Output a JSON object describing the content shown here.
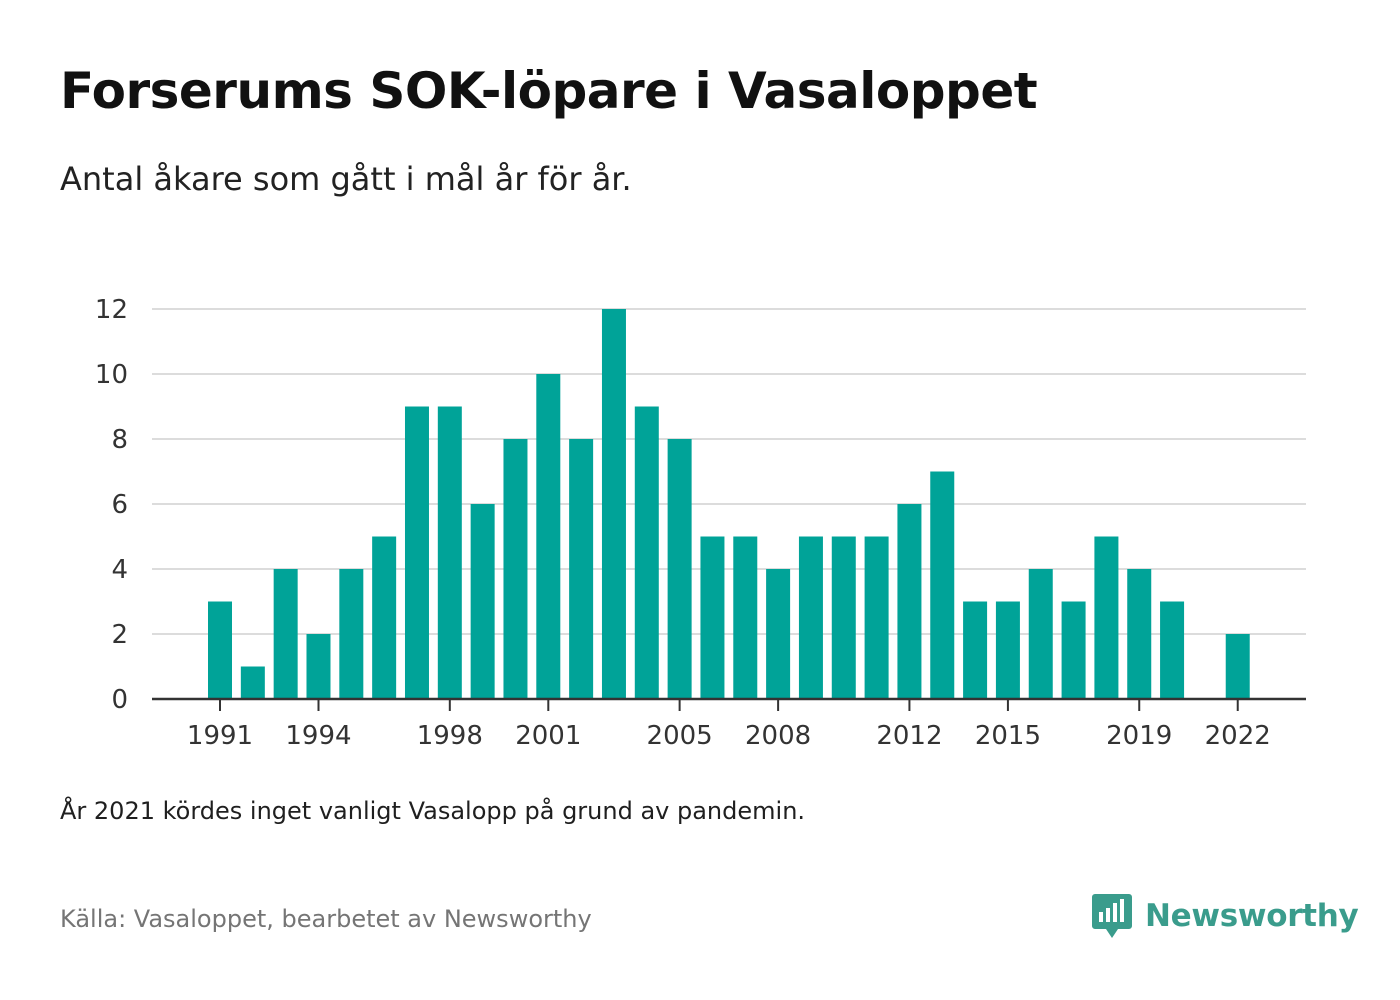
{
  "title": "Forserums SOK-löpare i Vasaloppet",
  "subtitle": "Antal åkare som gått i mål år för år.",
  "note": "År 2021 kördes inget vanligt Vasalopp på grund av pandemin.",
  "source": "Källa: Vasaloppet, bearbetet av Newsworthy",
  "brand": {
    "name": "Newsworthy",
    "icon": "newsworthy-logo-icon",
    "color": "#3a9c8c"
  },
  "colors": {
    "bar": "#00a398",
    "grid": "#dcdcdc",
    "axis": "#333333"
  },
  "chart_data": {
    "type": "bar",
    "title": "Forserums SOK-löpare i Vasaloppet",
    "subtitle": "Antal åkare som gått i mål år för år.",
    "xlabel": "",
    "ylabel": "",
    "ylim": [
      0,
      12
    ],
    "yticks": [
      0,
      2,
      4,
      6,
      8,
      10,
      12
    ],
    "x_tick_labels": [
      "1991",
      "1994",
      "1998",
      "2001",
      "2005",
      "2008",
      "2012",
      "2015",
      "2019",
      "2022"
    ],
    "grid": true,
    "legend": "none",
    "categories": [
      1991,
      1992,
      1993,
      1994,
      1995,
      1996,
      1997,
      1998,
      1999,
      2000,
      2001,
      2002,
      2003,
      2004,
      2005,
      2006,
      2007,
      2008,
      2009,
      2010,
      2011,
      2012,
      2013,
      2014,
      2015,
      2016,
      2017,
      2018,
      2019,
      2020,
      2021,
      2022
    ],
    "values": [
      3,
      1,
      4,
      2,
      4,
      5,
      9,
      9,
      6,
      8,
      10,
      8,
      12,
      9,
      8,
      5,
      5,
      4,
      5,
      5,
      5,
      6,
      7,
      3,
      3,
      4,
      3,
      5,
      4,
      3,
      null,
      2
    ]
  }
}
